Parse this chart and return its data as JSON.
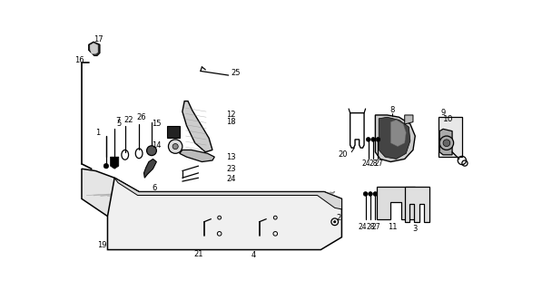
{
  "bg_color": "#ffffff",
  "line_color": "#000000",
  "figsize": [
    5.97,
    3.2
  ],
  "dpi": 100,
  "fs": 6.0
}
